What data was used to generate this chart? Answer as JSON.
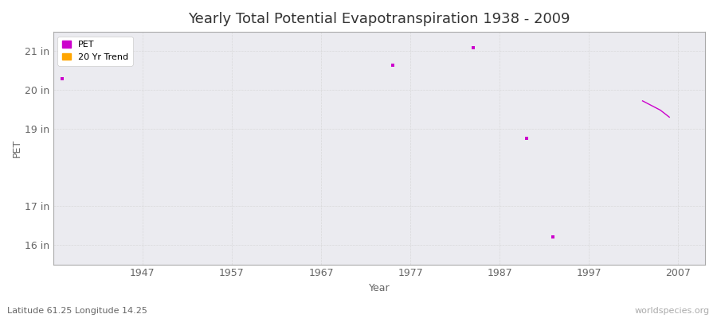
{
  "title": "Yearly Total Potential Evapotranspiration 1938 - 2009",
  "xlabel": "Year",
  "ylabel": "PET",
  "xlim": [
    1937,
    2010
  ],
  "ylim": [
    15.5,
    21.5
  ],
  "yticks": [
    16,
    17,
    19,
    20,
    21
  ],
  "ytick_labels": [
    "16 in",
    "17 in",
    "19 in",
    "20 in",
    "21 in"
  ],
  "xticks": [
    1947,
    1957,
    1967,
    1977,
    1987,
    1997,
    2007
  ],
  "xtick_labels": [
    "1947",
    "1957",
    "1967",
    "1977",
    "1987",
    "1997",
    "2007"
  ],
  "pet_color": "#cc00cc",
  "trend_color": "#ffa500",
  "background_color": "#ebebf0",
  "grid_color": "#cccccc",
  "pet_data_x": [
    1938,
    1975,
    1984,
    1990,
    1993
  ],
  "pet_data_y": [
    20.3,
    20.65,
    21.1,
    18.75,
    16.2
  ],
  "trend_x": [
    2003,
    2004,
    2005,
    2006
  ],
  "trend_y": [
    19.72,
    19.6,
    19.48,
    19.3
  ],
  "subtitle": "Latitude 61.25 Longitude 14.25",
  "watermark": "worldspecies.org",
  "title_fontsize": 13,
  "axis_fontsize": 9,
  "tick_fontsize": 9
}
